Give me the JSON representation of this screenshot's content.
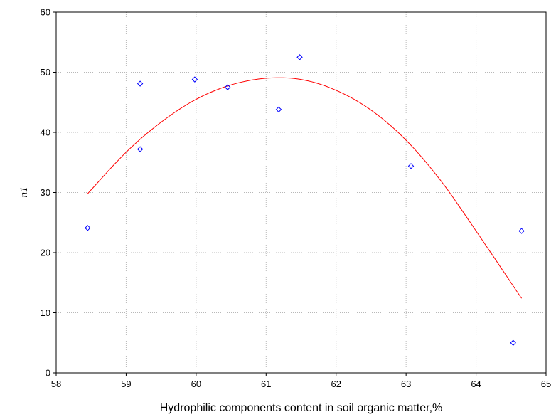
{
  "chart_data": {
    "type": "scatter",
    "title": "",
    "xlabel": "Hydrophilic components content in soil organic matter,%",
    "ylabel": "n1",
    "xlim": [
      58,
      65
    ],
    "ylim": [
      0,
      60
    ],
    "x_ticks": [
      "58",
      "59",
      "60",
      "61",
      "62",
      "63",
      "64",
      "65"
    ],
    "y_ticks": [
      "0",
      "10",
      "20",
      "30",
      "40",
      "50",
      "60"
    ],
    "grid": true,
    "legend": "none",
    "colors": {
      "points": "#0000ff",
      "fit": "#ff0000"
    },
    "series": [
      {
        "kind": "points",
        "x": [
          58.45,
          59.2,
          59.2,
          59.98,
          60.45,
          61.18,
          61.48,
          63.07,
          64.53,
          64.65
        ],
        "y": [
          24.1,
          48.1,
          37.2,
          48.8,
          47.5,
          43.8,
          52.5,
          34.4,
          5.0,
          23.6
        ]
      },
      {
        "kind": "fit",
        "x_range": [
          58.45,
          64.65
        ],
        "points": [
          [
            58.45,
            29.8
          ],
          [
            59.0,
            36.7
          ],
          [
            59.5,
            41.7
          ],
          [
            60.0,
            45.5
          ],
          [
            60.5,
            47.9
          ],
          [
            61.0,
            49.0
          ],
          [
            61.5,
            48.8
          ],
          [
            62.0,
            47.0
          ],
          [
            62.5,
            43.7
          ],
          [
            63.0,
            38.7
          ],
          [
            63.5,
            31.9
          ],
          [
            64.0,
            23.6
          ],
          [
            64.65,
            12.4
          ]
        ]
      }
    ]
  }
}
